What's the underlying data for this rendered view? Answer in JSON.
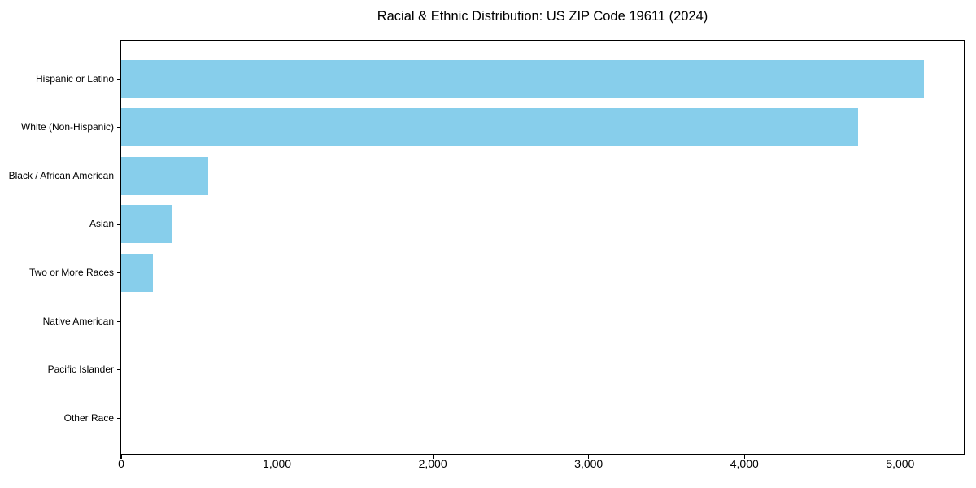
{
  "figure": {
    "background": "#ffffff",
    "frame_color": "#000000"
  },
  "chart_data": {
    "type": "bar",
    "orientation": "horizontal",
    "title": "Racial & Ethnic Distribution: US ZIP Code 19611 (2024)",
    "xlabel": "",
    "ylabel": "",
    "categories": [
      "Hispanic or Latino",
      "White (Non-Hispanic)",
      "Black / African American",
      "Asian",
      "Two or More Races",
      "Native American",
      "Pacific Islander",
      "Other Race"
    ],
    "values": [
      5150,
      4730,
      560,
      325,
      205,
      0,
      0,
      0
    ],
    "xlim": [
      0,
      5408
    ],
    "xticks": [
      0,
      1000,
      2000,
      3000,
      4000,
      5000
    ],
    "xtick_labels": [
      "0",
      "1,000",
      "2,000",
      "3,000",
      "4,000",
      "5,000"
    ],
    "bar_color": "#87CEEB",
    "grid": false,
    "legend": null
  }
}
